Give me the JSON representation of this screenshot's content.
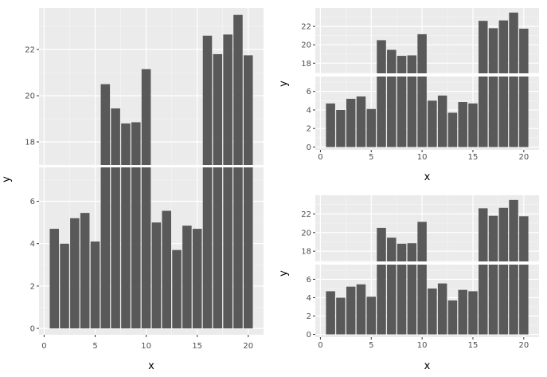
{
  "chart_data": [
    {
      "type": "bar",
      "xlabel": "x",
      "ylabel": "y",
      "x": [
        1,
        2,
        3,
        4,
        5,
        6,
        7,
        8,
        9,
        10,
        11,
        12,
        13,
        14,
        15,
        16,
        17,
        18,
        19,
        20
      ],
      "values": [
        4.7,
        4.0,
        5.2,
        5.45,
        4.1,
        20.5,
        19.45,
        18.8,
        18.85,
        21.15,
        5.0,
        5.55,
        3.7,
        4.85,
        4.7,
        22.6,
        21.8,
        22.65,
        23.5,
        21.75
      ],
      "xlim": [
        -0.5,
        21.5
      ],
      "x_ticks": [
        0,
        5,
        10,
        15,
        20
      ],
      "x_tick_labels": [
        "0",
        "5",
        "10",
        "15",
        "20"
      ],
      "broken_axis": {
        "lower": {
          "range": [
            -0.3,
            7.6
          ],
          "ticks": [
            0,
            2,
            4,
            6
          ],
          "tick_labels": [
            "0",
            "2",
            "4",
            "6"
          ]
        },
        "upper": {
          "range": [
            17.0,
            23.8
          ],
          "ticks": [
            18,
            20,
            22
          ],
          "tick_labels": [
            "18",
            "20",
            "22"
          ]
        }
      },
      "grid": true,
      "bar_color": "#595959",
      "panel_background": "#ebebeb"
    },
    {
      "type": "bar",
      "xlabel": "x",
      "ylabel": "y",
      "x": [
        1,
        2,
        3,
        4,
        5,
        6,
        7,
        8,
        9,
        10,
        11,
        12,
        13,
        14,
        15,
        16,
        17,
        18,
        19,
        20
      ],
      "values": [
        4.7,
        4.0,
        5.2,
        5.45,
        4.1,
        20.5,
        19.45,
        18.8,
        18.85,
        21.15,
        5.0,
        5.55,
        3.7,
        4.85,
        4.7,
        22.6,
        21.8,
        22.65,
        23.5,
        21.75
      ],
      "xlim": [
        -0.5,
        21.5
      ],
      "x_ticks": [
        0,
        5,
        10,
        15,
        20
      ],
      "x_tick_labels": [
        "0",
        "5",
        "10",
        "15",
        "20"
      ],
      "broken_axis": {
        "lower": {
          "range": [
            -0.3,
            7.6
          ],
          "ticks": [
            0,
            2,
            4,
            6
          ],
          "tick_labels": [
            "0",
            "2",
            "4",
            "6"
          ]
        },
        "upper": {
          "range": [
            16.9,
            24.0
          ],
          "ticks": [
            18,
            20,
            22
          ],
          "tick_labels": [
            "18",
            "20",
            "22"
          ]
        }
      },
      "grid": true,
      "bar_color": "#595959",
      "panel_background": "#ebebeb"
    },
    {
      "type": "bar",
      "xlabel": "x",
      "ylabel": "y",
      "x": [
        1,
        2,
        3,
        4,
        5,
        6,
        7,
        8,
        9,
        10,
        11,
        12,
        13,
        14,
        15,
        16,
        17,
        18,
        19,
        20
      ],
      "values": [
        4.7,
        4.0,
        5.2,
        5.45,
        4.1,
        20.5,
        19.45,
        18.8,
        18.85,
        21.15,
        5.0,
        5.55,
        3.7,
        4.85,
        4.7,
        22.6,
        21.8,
        22.65,
        23.5,
        21.75
      ],
      "xlim": [
        -0.5,
        21.5
      ],
      "x_ticks": [
        0,
        5,
        10,
        15,
        20
      ],
      "x_tick_labels": [
        "0",
        "5",
        "10",
        "15",
        "20"
      ],
      "broken_axis": {
        "lower": {
          "range": [
            -0.3,
            7.6
          ],
          "ticks": [
            0,
            2,
            4,
            6
          ],
          "tick_labels": [
            "0",
            "2",
            "4",
            "6"
          ]
        },
        "upper": {
          "range": [
            16.9,
            24.0
          ],
          "ticks": [
            18,
            20,
            22
          ],
          "tick_labels": [
            "18",
            "20",
            "22"
          ]
        }
      },
      "grid": true,
      "bar_color": "#595959",
      "panel_background": "#ebebeb"
    }
  ]
}
